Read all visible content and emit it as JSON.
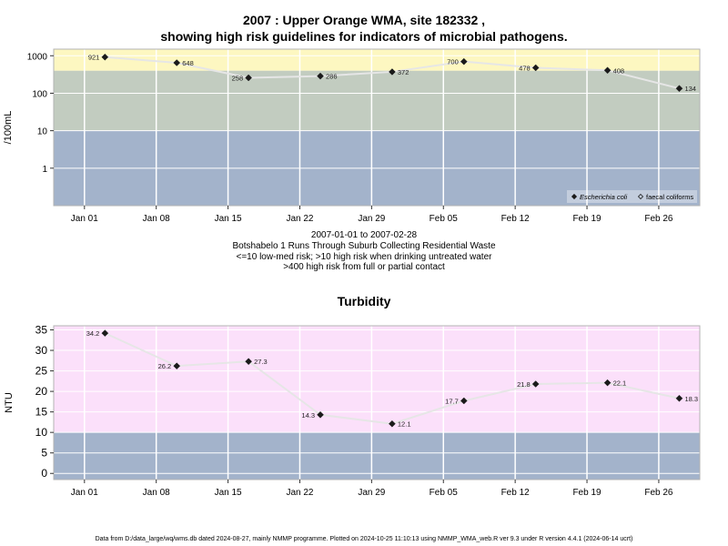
{
  "title_line1": "2007 : Upper Orange WMA, site 182332 ,",
  "title_line2": "showing high risk guidelines for indicators of microbial pathogens.",
  "period": "2007-01-01 to 2007-02-28",
  "site_description": "Botshabelo 1 Runs Through Suburb Collecting Residential Waste",
  "risk_note_1": "<=10 low-med risk; >10 high risk when drinking untreated water",
  "risk_note_2": ">400 high risk from full or partial contact",
  "footer": "Data from D:/data_large/wq/wms.db dated 2024-08-27, mainly NMMP programme. Plotted on 2024-10-25 11:10:13 using NMMP_WMA_web.R ver 9.3 under R version 4.4.1 (2024-06-14 ucrt)",
  "colors": {
    "band_low": "#a3b3cb",
    "band_mid": "#c2ccc0",
    "band_high": "#fdf7c1",
    "band_turb_high": "#fbe0fa",
    "line": "#e6e6e6",
    "grid": "#ffffff",
    "marker": "#1a1a1a"
  },
  "chart_data": [
    {
      "type": "line",
      "title": "",
      "xlabel": "",
      "ylabel": "/100mL",
      "scale": "log10",
      "ylim": [
        0.1,
        1500
      ],
      "xlim": [
        "2006-12-29",
        "2007-03-02"
      ],
      "grid": true,
      "legend_position": "bottom-right",
      "y_ticks": [
        1,
        10,
        100,
        1000
      ],
      "y_tick_labels": [
        "1",
        "10",
        "100",
        "1000"
      ],
      "x_ticks": [
        "2007-01-01",
        "2007-01-08",
        "2007-01-15",
        "2007-01-22",
        "2007-01-29",
        "2007-02-05",
        "2007-02-12",
        "2007-02-19",
        "2007-02-26"
      ],
      "x_tick_labels": [
        "Jan 01",
        "Jan 08",
        "Jan 15",
        "Jan 22",
        "Jan 29",
        "Feb 05",
        "Feb 12",
        "Feb 19",
        "Feb 26"
      ],
      "bands": [
        {
          "from": 0.1,
          "to": 10,
          "color": "#a3b3cb"
        },
        {
          "from": 10,
          "to": 400,
          "color": "#c2ccc0"
        },
        {
          "from": 400,
          "to": 1500,
          "color": "#fdf7c1"
        }
      ],
      "legend": [
        {
          "label": "Escherichia coli",
          "marker": "filled-diamond",
          "italic": true
        },
        {
          "label": "faecal coliforms",
          "marker": "open-diamond",
          "italic": false
        }
      ],
      "series": [
        {
          "name": "Escherichia coli",
          "x": [
            "2007-01-03",
            "2007-01-10",
            "2007-01-17",
            "2007-01-24",
            "2007-01-31",
            "2007-02-07",
            "2007-02-14",
            "2007-02-21",
            "2007-02-28"
          ],
          "values": [
            921,
            648,
            258,
            286,
            372,
            700,
            478,
            408,
            134
          ],
          "labels": [
            "921",
            "648",
            "258",
            "286",
            "372",
            "700",
            "478",
            "408",
            "134"
          ],
          "label_side": [
            "left",
            "right",
            "left",
            "right",
            "right",
            "left",
            "left",
            "right",
            "right"
          ]
        }
      ]
    },
    {
      "type": "line",
      "title": "Turbidity",
      "xlabel": "",
      "ylabel": "NTU",
      "scale": "linear",
      "ylim": [
        -1.5,
        36
      ],
      "xlim": [
        "2006-12-29",
        "2007-03-02"
      ],
      "grid": true,
      "y_ticks": [
        0,
        5,
        10,
        15,
        20,
        25,
        30,
        35
      ],
      "y_tick_labels": [
        "0",
        "5",
        "10",
        "15",
        "20",
        "25",
        "30",
        "35"
      ],
      "x_ticks": [
        "2007-01-01",
        "2007-01-08",
        "2007-01-15",
        "2007-01-22",
        "2007-01-29",
        "2007-02-05",
        "2007-02-12",
        "2007-02-19",
        "2007-02-26"
      ],
      "x_tick_labels": [
        "Jan 01",
        "Jan 08",
        "Jan 15",
        "Jan 22",
        "Jan 29",
        "Feb 05",
        "Feb 12",
        "Feb 19",
        "Feb 26"
      ],
      "bands": [
        {
          "from": -1.5,
          "to": 10,
          "color": "#a3b3cb"
        },
        {
          "from": 10,
          "to": 36,
          "color": "#fbe0fa"
        }
      ],
      "series": [
        {
          "name": "",
          "x": [
            "2007-01-03",
            "2007-01-10",
            "2007-01-17",
            "2007-01-24",
            "2007-01-31",
            "2007-02-07",
            "2007-02-14",
            "2007-02-21",
            "2007-02-28"
          ],
          "values": [
            34.2,
            26.2,
            27.3,
            14.3,
            12.1,
            17.7,
            21.8,
            22.1,
            18.3
          ],
          "labels": [
            "34.2",
            "26.2",
            "27.3",
            "14.3",
            "12.1",
            "17.7",
            "21.8",
            "22.1",
            "18.3"
          ],
          "label_side": [
            "left",
            "left",
            "right",
            "left",
            "right",
            "left",
            "left",
            "right",
            "right"
          ]
        }
      ]
    }
  ]
}
